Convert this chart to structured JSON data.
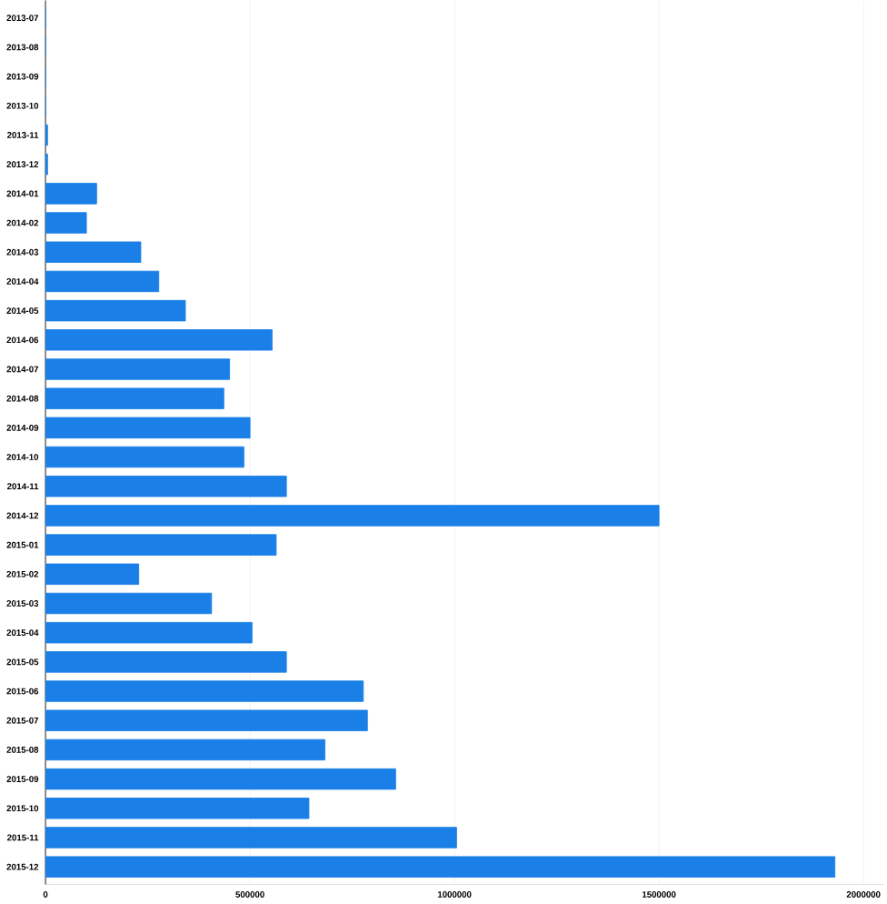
{
  "chart_data": {
    "type": "bar",
    "orientation": "horizontal",
    "categories": [
      "2013-07",
      "2013-08",
      "2013-09",
      "2013-10",
      "2013-11",
      "2013-12",
      "2014-01",
      "2014-02",
      "2014-03",
      "2014-04",
      "2014-05",
      "2014-06",
      "2014-07",
      "2014-08",
      "2014-09",
      "2014-10",
      "2014-11",
      "2014-12",
      "2015-01",
      "2015-02",
      "2015-03",
      "2015-04",
      "2015-05",
      "2015-06",
      "2015-07",
      "2015-08",
      "2015-09",
      "2015-10",
      "2015-11",
      "2015-12"
    ],
    "values": [
      0,
      0,
      0,
      0,
      5000,
      5000,
      125000,
      100000,
      233000,
      277000,
      342000,
      554000,
      450000,
      436000,
      500000,
      485000,
      589000,
      1500000,
      564000,
      228000,
      406000,
      505000,
      589000,
      777000,
      787000,
      683000,
      856000,
      644000,
      1005000,
      1930000
    ],
    "color": "#1a7fe6",
    "xlim": [
      0,
      2050000
    ],
    "xticks": [
      0,
      500000,
      1000000,
      1500000,
      2000000
    ],
    "grid": "x"
  }
}
